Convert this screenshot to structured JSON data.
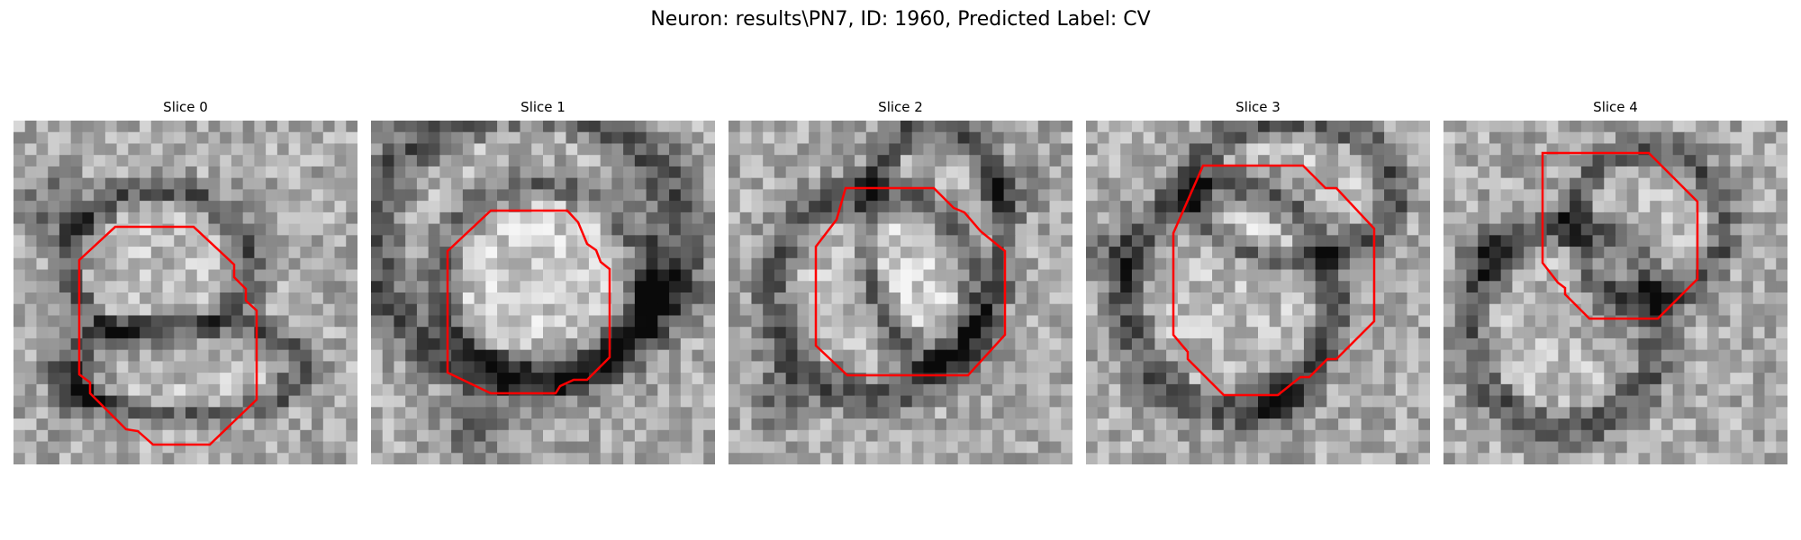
{
  "figure": {
    "title": "Neuron: results\\PN7, ID: 1960, Predicted Label: CV"
  },
  "colors": {
    "contour": "#ff0000",
    "background": "#ffffff"
  },
  "slices": [
    {
      "label": "Slice 0"
    },
    {
      "label": "Slice 1"
    },
    {
      "label": "Slice 2"
    },
    {
      "label": "Slice 3"
    },
    {
      "label": "Slice 4"
    }
  ]
}
